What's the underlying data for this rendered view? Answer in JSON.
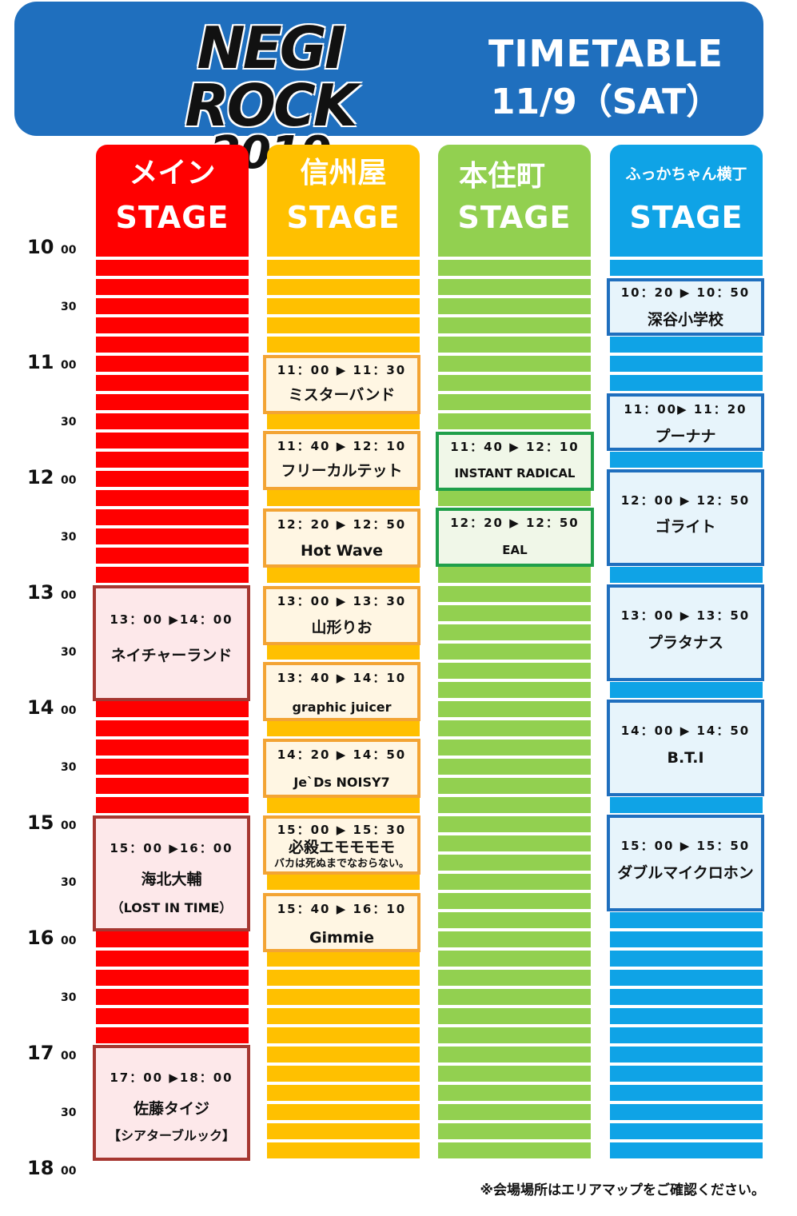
{
  "header": {
    "logo_line1": "NEGI ROCK",
    "logo_line2": "2019",
    "title": "TIMETABLE",
    "date": "11/9（SAT）"
  },
  "times": [
    {
      "hour": "10",
      "min": "00"
    },
    {
      "hour": "",
      "min": "30"
    },
    {
      "hour": "11",
      "min": "00"
    },
    {
      "hour": "",
      "min": "30"
    },
    {
      "hour": "12",
      "min": "00"
    },
    {
      "hour": "",
      "min": "30"
    },
    {
      "hour": "13",
      "min": "00"
    },
    {
      "hour": "",
      "min": "30"
    },
    {
      "hour": "14",
      "min": "00"
    },
    {
      "hour": "",
      "min": "30"
    },
    {
      "hour": "15",
      "min": "00"
    },
    {
      "hour": "",
      "min": "30"
    },
    {
      "hour": "16",
      "min": "00"
    },
    {
      "hour": "",
      "min": "30"
    },
    {
      "hour": "17",
      "min": "00"
    },
    {
      "hour": "",
      "min": "30"
    },
    {
      "hour": "18",
      "min": "00"
    }
  ],
  "stages": [
    {
      "name": "メイン",
      "stage_label": "STAGE",
      "color": "#ff0000",
      "slots": [
        {
          "time": "13：00 ▶14：00",
          "artist": "ネイチャーランド",
          "sub": ""
        },
        {
          "time": "15：00 ▶16：00",
          "artist": "海北大輔",
          "sub": "（LOST IN TIME）"
        },
        {
          "time": "17：00 ▶18：00",
          "artist": "佐藤タイジ",
          "sub": "【シアターブルック】"
        }
      ]
    },
    {
      "name": "信州屋",
      "stage_label": "STAGE",
      "color": "#ffc000",
      "slots": [
        {
          "time": "11：00 ▶ 11：30",
          "artist": "ミスターバンド",
          "sub": ""
        },
        {
          "time": "11：40 ▶ 12：10",
          "artist": "フリーカルテット",
          "sub": ""
        },
        {
          "time": "12：20 ▶ 12：50",
          "artist": "Hot Wave",
          "sub": ""
        },
        {
          "time": "13：00 ▶ 13：30",
          "artist": "山形りお",
          "sub": ""
        },
        {
          "time": "13：40 ▶ 14：10",
          "artist": "graphic juicer",
          "sub": ""
        },
        {
          "time": "14：20 ▶ 14：50",
          "artist": "Je`Ds NOISY7",
          "sub": ""
        },
        {
          "time": "15：00 ▶ 15：30",
          "artist": "必殺エモモモモ",
          "sub": "バカは死ぬまでなおらない。"
        },
        {
          "time": "15：40 ▶ 16：10",
          "artist": "Gimmie",
          "sub": ""
        }
      ]
    },
    {
      "name": "本住町",
      "stage_label": "STAGE",
      "color": "#92d050",
      "slots": [
        {
          "time": "11：40 ▶ 12：10",
          "artist": "INSTANT RADICAL",
          "sub": ""
        },
        {
          "time": "12：20 ▶ 12：50",
          "artist": "EAL",
          "sub": ""
        }
      ]
    },
    {
      "name": "ふっかちゃん横丁",
      "stage_label": "STAGE",
      "color": "#0fa3e6",
      "slots": [
        {
          "time": "10：20 ▶ 10：50",
          "artist": "深谷小学校",
          "sub": ""
        },
        {
          "time": "11：00▶ 11：20",
          "artist": "プーナナ",
          "sub": ""
        },
        {
          "time": "12：00 ▶ 12：50",
          "artist": "ゴライト",
          "sub": ""
        },
        {
          "time": "13：00 ▶ 13：50",
          "artist": "プラタナス",
          "sub": ""
        },
        {
          "time": "14：00 ▶ 14：50",
          "artist": "B.T.I",
          "sub": ""
        },
        {
          "time": "15：00 ▶ 15：50",
          "artist": "ダブルマイクロホン",
          "sub": ""
        }
      ]
    }
  ],
  "footnote": "※会場場所はエリアマップをご確認ください。"
}
